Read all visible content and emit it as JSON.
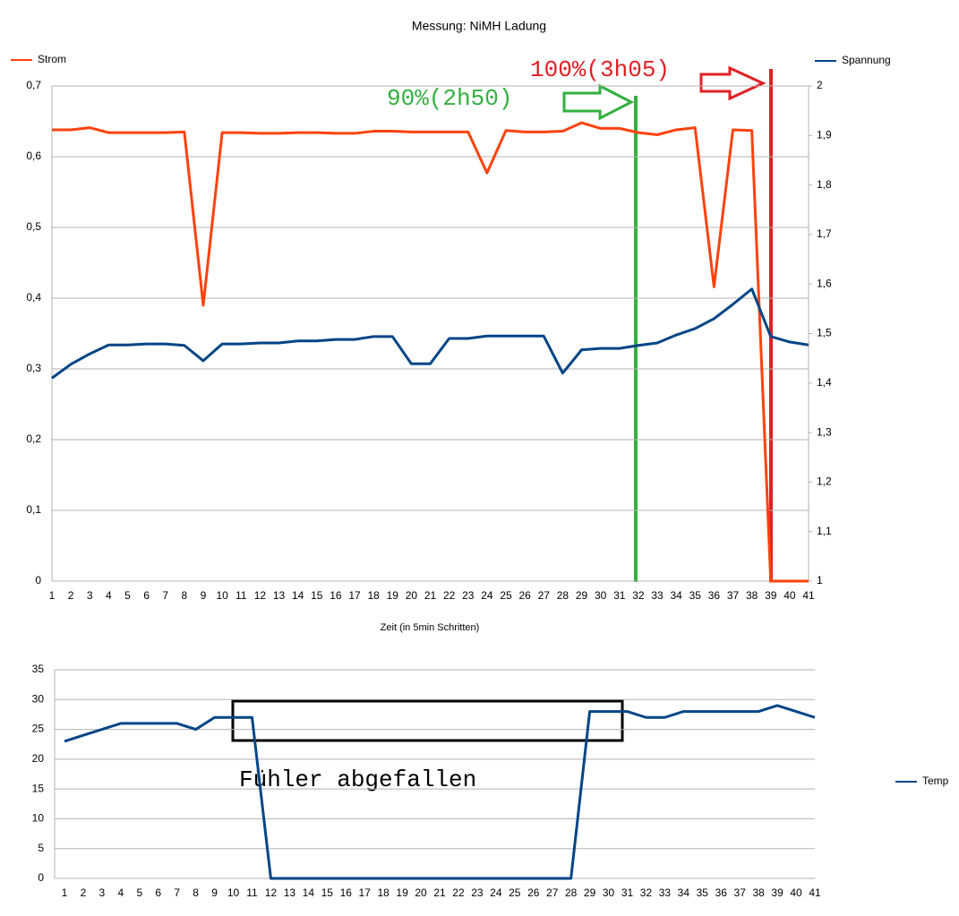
{
  "chart_data": [
    {
      "type": "line",
      "title": "Messung: NiMH Ladung",
      "x_label": "Zeit (in 5min Schritten)",
      "categories": [
        1,
        2,
        3,
        4,
        5,
        6,
        7,
        8,
        9,
        10,
        11,
        12,
        13,
        14,
        15,
        16,
        17,
        18,
        19,
        20,
        21,
        22,
        23,
        24,
        25,
        26,
        27,
        28,
        29,
        30,
        31,
        32,
        33,
        34,
        35,
        36,
        37,
        38,
        39,
        40,
        41
      ],
      "series": [
        {
          "name": "Strom",
          "color": "#ff420e",
          "values": [
            0.638,
            0.638,
            0.641,
            0.634,
            0.634,
            0.634,
            0.634,
            0.635,
            0.39,
            0.634,
            0.634,
            0.633,
            0.633,
            0.634,
            0.634,
            0.633,
            0.633,
            0.636,
            0.636,
            0.635,
            0.635,
            0.635,
            0.635,
            0.577,
            0.637,
            0.635,
            0.635,
            0.636,
            0.648,
            0.64,
            0.64,
            0.634,
            0.631,
            0.638,
            0.641,
            0.416,
            0.638,
            0.637,
            0,
            0,
            0
          ]
        },
        {
          "name": "Spannung",
          "color": "#004586",
          "axis": "y2",
          "values": [
            1.41,
            1.438,
            1.459,
            1.477,
            1.477,
            1.479,
            1.479,
            1.476,
            1.445,
            1.479,
            1.479,
            1.481,
            1.481,
            1.485,
            1.485,
            1.488,
            1.488,
            1.494,
            1.494,
            1.439,
            1.439,
            1.49,
            1.49,
            1.495,
            1.495,
            1.495,
            1.495,
            1.42,
            1.467,
            1.47,
            1.47,
            1.476,
            1.481,
            1.497,
            1.51,
            1.53,
            1.559,
            1.59,
            1.494,
            1.483,
            1.477
          ]
        }
      ],
      "ylim": [
        0,
        0.7
      ],
      "yticks": [
        0,
        {
          "value": 0.1,
          "label": "0,1"
        },
        {
          "value": 0.2,
          "label": "0,2"
        },
        {
          "value": 0.3,
          "label": "0,3"
        },
        {
          "value": 0.4,
          "label": "0,4"
        },
        {
          "value": 0.5,
          "label": "0,5"
        },
        {
          "value": 0.6,
          "label": "0,6"
        },
        {
          "value": 0.7,
          "label": "0,7"
        }
      ],
      "y2lim": [
        1,
        2
      ],
      "y2ticks": [
        1,
        {
          "value": 1.1,
          "label": "1,1"
        },
        {
          "value": 1.2,
          "label": "1,2"
        },
        {
          "value": 1.3,
          "label": "1,3"
        },
        {
          "value": 1.4,
          "label": "1,4"
        },
        {
          "value": 1.5,
          "label": "1,5"
        },
        {
          "value": 1.6,
          "label": "1,6"
        },
        {
          "value": 1.7,
          "label": "1,7"
        },
        {
          "value": 1.8,
          "label": "1,8"
        },
        {
          "value": 1.9,
          "label": "1,9"
        },
        2
      ],
      "grid": true,
      "annotations": [
        "90%(2h50)",
        "100%(3h05)"
      ]
    },
    {
      "type": "line",
      "categories": [
        1,
        2,
        3,
        4,
        5,
        6,
        7,
        8,
        9,
        10,
        11,
        12,
        13,
        14,
        15,
        16,
        17,
        18,
        19,
        20,
        21,
        22,
        23,
        24,
        25,
        26,
        27,
        28,
        29,
        30,
        31,
        32,
        33,
        34,
        35,
        36,
        37,
        38,
        39,
        40,
        41
      ],
      "series": [
        {
          "name": "Temp",
          "color": "#004586",
          "values": [
            23,
            24,
            25,
            26,
            26,
            26,
            26,
            25,
            27,
            27,
            27,
            0,
            0,
            0,
            0,
            0,
            0,
            0,
            0,
            0,
            0,
            0,
            0,
            0,
            0,
            0,
            0,
            0,
            28,
            28,
            28,
            27,
            27,
            28,
            28,
            28,
            28,
            28,
            29,
            28,
            27
          ]
        }
      ],
      "ylim": [
        0,
        35
      ],
      "yticks": [
        0,
        5,
        10,
        15,
        20,
        25,
        30,
        35
      ],
      "grid": true,
      "annotations": [
        "Fühler abgefallen"
      ]
    }
  ]
}
